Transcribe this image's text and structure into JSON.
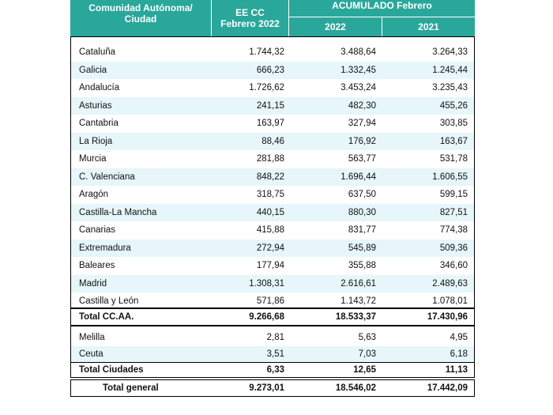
{
  "header": {
    "region_line1": "Comunidad Autónoma/",
    "region_line2": "Ciudad",
    "eecc_line1": "EE CC",
    "eecc_line2": "Febrero 2022",
    "acumulado": "ACUMULADO Febrero",
    "year_2022": "2022",
    "year_2021": "2021"
  },
  "regions": [
    {
      "name": "Cataluña",
      "eecc": "1.744,32",
      "y2022": "3.488,64",
      "y2021": "3.264,33"
    },
    {
      "name": "Galicia",
      "eecc": "666,23",
      "y2022": "1.332,45",
      "y2021": "1.245,44"
    },
    {
      "name": "Andalucía",
      "eecc": "1.726,62",
      "y2022": "3.453,24",
      "y2021": "3.235,43"
    },
    {
      "name": "Asturias",
      "eecc": "241,15",
      "y2022": "482,30",
      "y2021": "455,26"
    },
    {
      "name": "Cantabria",
      "eecc": "163,97",
      "y2022": "327,94",
      "y2021": "303,85"
    },
    {
      "name": "La Rioja",
      "eecc": "88,46",
      "y2022": "176,92",
      "y2021": "163,67"
    },
    {
      "name": "Murcia",
      "eecc": "281,88",
      "y2022": "563,77",
      "y2021": "531,78"
    },
    {
      "name": "C. Valenciana",
      "eecc": "848,22",
      "y2022": "1.696,44",
      "y2021": "1.606,55"
    },
    {
      "name": "Aragón",
      "eecc": "318,75",
      "y2022": "637,50",
      "y2021": "599,15"
    },
    {
      "name": "Castilla-La Mancha",
      "eecc": "440,15",
      "y2022": "880,30",
      "y2021": "827,51"
    },
    {
      "name": "Canarias",
      "eecc": "415,88",
      "y2022": "831,77",
      "y2021": "774,38"
    },
    {
      "name": "Extremadura",
      "eecc": "272,94",
      "y2022": "545,89",
      "y2021": "509,36"
    },
    {
      "name": "Baleares",
      "eecc": "177,94",
      "y2022": "355,88",
      "y2021": "346,60"
    },
    {
      "name": "Madrid",
      "eecc": "1.308,31",
      "y2022": "2.616,61",
      "y2021": "2.489,63"
    },
    {
      "name": "Castilla y León",
      "eecc": "571,86",
      "y2022": "1.143,72",
      "y2021": "1.078,01"
    }
  ],
  "total_ccaa": {
    "name": "Total CC.AA.",
    "eecc": "9.266,68",
    "y2022": "18.533,37",
    "y2021": "17.430,96"
  },
  "cities": [
    {
      "name": "Melilla",
      "eecc": "2,81",
      "y2022": "5,63",
      "y2021": "4,95"
    },
    {
      "name": "Ceuta",
      "eecc": "3,51",
      "y2022": "7,03",
      "y2021": "6,18"
    }
  ],
  "total_ciudades": {
    "name": "Total Ciudades",
    "eecc": "6,33",
    "y2022": "12,65",
    "y2021": "11,13"
  },
  "total_general": {
    "name": "Total general",
    "eecc": "9.273,01",
    "y2022": "18.546,02",
    "y2021": "17.442,09"
  }
}
